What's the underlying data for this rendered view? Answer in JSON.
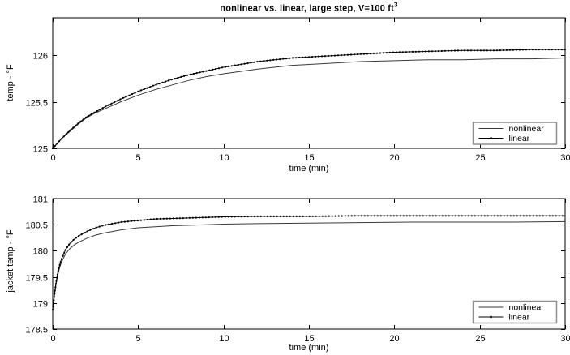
{
  "figure": {
    "background": "#ffffff",
    "axis_color": "#000000",
    "text_color": "#000000",
    "legend_border_color": "#8f8f8f",
    "title_main": "nonlinear vs. linear, large step, V=100 ft",
    "title_sup": "3"
  },
  "chart_data": [
    {
      "type": "line",
      "title": "nonlinear vs. linear, large step, V=100 ft³",
      "xlabel": "time (min)",
      "ylabel": "temp - °F",
      "xlim": [
        0,
        30
      ],
      "ylim": [
        125,
        126.4
      ],
      "xticks": [
        0,
        5,
        10,
        15,
        20,
        25,
        30
      ],
      "yticks": [
        125,
        125.5,
        126
      ],
      "grid": false,
      "legend_position": "bottom-right",
      "series": [
        {
          "name": "nonlinear",
          "color": "#3a3a3a",
          "marker": "none",
          "x": [
            0,
            0.5,
            1,
            1.5,
            2,
            2.5,
            3,
            4,
            5,
            6,
            7,
            8,
            9,
            10,
            12,
            14,
            16,
            18,
            20,
            22,
            24,
            26,
            28,
            30
          ],
          "values": [
            125,
            125.1,
            125.18,
            125.26,
            125.33,
            125.38,
            125.42,
            125.5,
            125.57,
            125.63,
            125.68,
            125.73,
            125.77,
            125.8,
            125.85,
            125.89,
            125.91,
            125.93,
            125.94,
            125.95,
            125.95,
            125.96,
            125.96,
            125.97
          ]
        },
        {
          "name": "linear",
          "color": "#000000",
          "marker": "dot",
          "x": [
            0,
            0.5,
            1,
            1.5,
            2,
            2.5,
            3,
            4,
            5,
            6,
            7,
            8,
            9,
            10,
            12,
            14,
            16,
            18,
            20,
            22,
            24,
            26,
            28,
            30
          ],
          "values": [
            125,
            125.1,
            125.19,
            125.27,
            125.34,
            125.39,
            125.44,
            125.53,
            125.61,
            125.68,
            125.74,
            125.79,
            125.83,
            125.87,
            125.93,
            125.97,
            125.99,
            126.01,
            126.03,
            126.04,
            126.05,
            126.05,
            126.06,
            126.06
          ]
        }
      ]
    },
    {
      "type": "line",
      "title": "",
      "xlabel": "time (min)",
      "ylabel": "jacket temp - °F",
      "xlim": [
        0,
        30
      ],
      "ylim": [
        178.5,
        181
      ],
      "xticks": [
        0,
        5,
        10,
        15,
        20,
        25,
        30
      ],
      "yticks": [
        178.5,
        179,
        179.5,
        180,
        180.5,
        181
      ],
      "grid": false,
      "legend_position": "bottom-right",
      "series": [
        {
          "name": "nonlinear",
          "color": "#3a3a3a",
          "marker": "none",
          "x": [
            0,
            0.1,
            0.2,
            0.3,
            0.4,
            0.5,
            0.75,
            1,
            1.25,
            1.5,
            2,
            2.5,
            3,
            4,
            5,
            6,
            7,
            8,
            10,
            12,
            15,
            18,
            21,
            24,
            27,
            30
          ],
          "values": [
            178.87,
            179.14,
            179.37,
            179.54,
            179.67,
            179.77,
            179.94,
            180.04,
            180.11,
            180.16,
            180.24,
            180.3,
            180.34,
            180.4,
            180.44,
            180.46,
            180.48,
            180.49,
            180.51,
            180.52,
            180.53,
            180.54,
            180.55,
            180.55,
            180.55,
            180.56
          ]
        },
        {
          "name": "linear",
          "color": "#000000",
          "marker": "dot",
          "x": [
            0,
            0.1,
            0.2,
            0.3,
            0.4,
            0.5,
            0.75,
            1,
            1.25,
            1.5,
            2,
            2.5,
            3,
            4,
            5,
            6,
            7,
            8,
            10,
            12,
            15,
            18,
            21,
            24,
            27,
            30
          ],
          "values": [
            178.87,
            179.16,
            179.4,
            179.58,
            179.72,
            179.83,
            180.02,
            180.14,
            180.22,
            180.28,
            180.37,
            180.44,
            180.49,
            180.55,
            180.58,
            180.61,
            180.62,
            180.63,
            180.65,
            180.66,
            180.66,
            180.67,
            180.67,
            180.67,
            180.67,
            180.67
          ]
        }
      ]
    }
  ]
}
